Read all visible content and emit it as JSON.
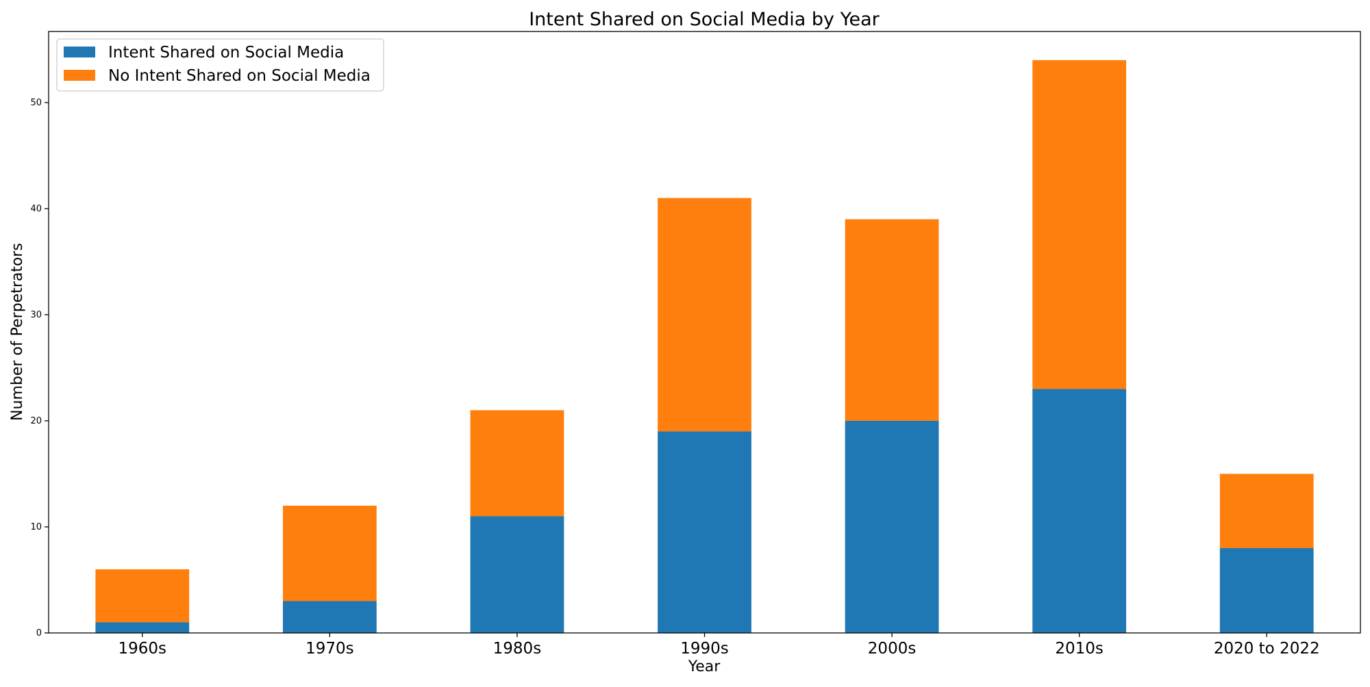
{
  "chart_data": {
    "type": "bar",
    "stacked": true,
    "title": "Intent Shared on Social Media by Year",
    "xlabel": "Year",
    "ylabel": "Number of Perpetrators",
    "categories": [
      "1960s",
      "1970s",
      "1980s",
      "1990s",
      "2000s",
      "2010s",
      "2020 to 2022"
    ],
    "series": [
      {
        "name": "Intent Shared on Social Media",
        "color": "#1f77b4",
        "values": [
          1,
          3,
          11,
          19,
          20,
          23,
          8
        ]
      },
      {
        "name": "No Intent Shared on Social Media",
        "color": "#ff7f0e",
        "values": [
          5,
          9,
          10,
          22,
          19,
          31,
          7
        ]
      }
    ],
    "ylim": [
      0,
      56.7
    ],
    "yticks": [
      0,
      10,
      20,
      30,
      40,
      50
    ],
    "grid": false,
    "legend_position": "top-left"
  }
}
